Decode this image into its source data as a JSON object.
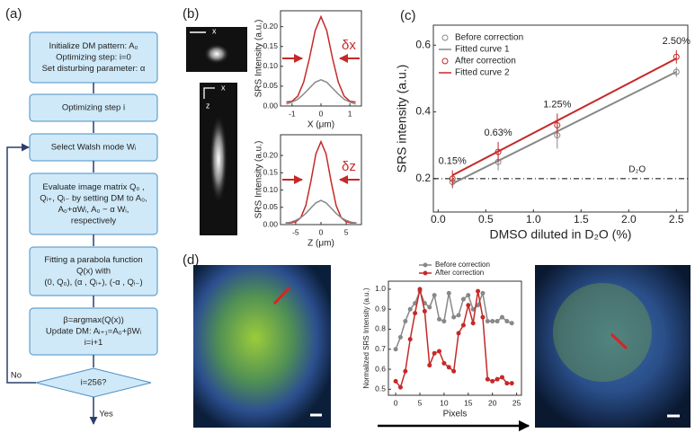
{
  "panels": [
    "(a)",
    "(b)",
    "(c)",
    "(d)"
  ],
  "flowchart": {
    "steps": [
      [
        "Initialize DM pattern: A₀",
        "Optimizing step: i=0",
        "Set disturbing parameter: α"
      ],
      [
        "Optimizing step i"
      ],
      [
        "Select Walsh mode Wᵢ"
      ],
      [
        "Evaluate image matrix Q₀ ,",
        "Qᵢ₊, Qᵢ₋ by setting DM to A₀,",
        "A₀+αWᵢ, A₀ − α Wᵢ,",
        "respectively"
      ],
      [
        "Fitting a parabola function",
        "Q(x) with",
        "(0, Q₀), (α , Qᵢ₊), (-α , Qᵢ₋)"
      ],
      [
        "β=argmax(Q(x))",
        "Update DM: Aᵢ₊₁=A₀+βWᵢ",
        "i=i+1"
      ]
    ],
    "decision": "i=256?",
    "no": "No",
    "yes": "Yes"
  },
  "images": [
    {
      "axes": [
        "x"
      ]
    },
    {
      "axes": [
        "x",
        "z"
      ]
    }
  ],
  "chart_data": [
    {
      "type": "line",
      "xlabel": "X (μm)",
      "ylabel": "SRS Intensity (a.u.)",
      "annotation": "δx",
      "xlim": [
        -1.4,
        1.4
      ],
      "xticks": [
        -1,
        0,
        1
      ],
      "ylim": [
        0,
        0.24
      ],
      "yticks": [
        {
          "value": 0,
          "label": "0.00"
        },
        0.05,
        {
          "value": 0.1,
          "label": "0.10"
        },
        0.15,
        {
          "value": 0.2,
          "label": "0.20"
        }
      ],
      "series": [
        {
          "color": "#c62828",
          "style": "line",
          "x": [
            -1.2,
            -1.0,
            -0.8,
            -0.6,
            -0.4,
            -0.2,
            0,
            0.2,
            0.4,
            0.6,
            0.8,
            1.0,
            1.2
          ],
          "values": [
            0.01,
            0.012,
            0.025,
            0.06,
            0.12,
            0.19,
            0.225,
            0.19,
            0.12,
            0.06,
            0.025,
            0.012,
            0.01
          ]
        },
        {
          "color": "#888888",
          "style": "line",
          "x": [
            -1.2,
            -1.0,
            -0.8,
            -0.6,
            -0.4,
            -0.2,
            0,
            0.2,
            0.4,
            0.6,
            0.8,
            1.0,
            1.2
          ],
          "values": [
            0.005,
            0.01,
            0.017,
            0.03,
            0.045,
            0.06,
            0.066,
            0.06,
            0.045,
            0.03,
            0.017,
            0.01,
            0.005
          ]
        }
      ]
    },
    {
      "type": "line",
      "xlabel": "Z (μm)",
      "ylabel": "SRS Intensity (a.u.)",
      "annotation": "δz",
      "xlim": [
        -8,
        8
      ],
      "xticks": [
        -5,
        0,
        5
      ],
      "ylim": [
        0,
        0.26
      ],
      "yticks": [
        {
          "value": 0,
          "label": "0.00"
        },
        0.05,
        {
          "value": 0.1,
          "label": "0.10"
        },
        0.15,
        {
          "value": 0.2,
          "label": "0.20"
        }
      ],
      "series": [
        {
          "color": "#c62828",
          "style": "line",
          "x": [
            -7,
            -6,
            -5,
            -4,
            -3,
            -2,
            -1,
            0,
            1,
            2,
            3,
            4,
            5,
            6,
            7
          ],
          "values": [
            0.005,
            0.005,
            0.008,
            0.02,
            0.055,
            0.125,
            0.205,
            0.24,
            0.205,
            0.125,
            0.055,
            0.02,
            0.008,
            0.005,
            0.005
          ]
        },
        {
          "color": "#888888",
          "style": "line",
          "x": [
            -7,
            -6,
            -5,
            -4,
            -3,
            -2,
            -1,
            0,
            1,
            2,
            3,
            4,
            5,
            6,
            7
          ],
          "values": [
            0.005,
            0.007,
            0.012,
            0.02,
            0.032,
            0.048,
            0.063,
            0.07,
            0.063,
            0.048,
            0.032,
            0.02,
            0.012,
            0.007,
            0.005
          ]
        }
      ]
    },
    {
      "type": "scatter",
      "xlabel": "DMSO diluted in D₂O (%)",
      "ylabel": "SRS intensity (a.u.)",
      "xlim": [
        -0.05,
        2.62
      ],
      "ylim": [
        0.1,
        0.66
      ],
      "xticks": [
        {
          "value": 0,
          "label": "0.0"
        },
        0.5,
        {
          "value": 1,
          "label": "1.0"
        },
        1.5,
        {
          "value": 2,
          "label": "2.0"
        },
        2.5
      ],
      "yticks": [
        0.2,
        0.4,
        0.6
      ],
      "legend": "upper left",
      "reference_line": {
        "value": 0.2,
        "label": "D₂O"
      },
      "point_labels": [
        "0.15%",
        "0.63%",
        "1.25%",
        "2.50%"
      ],
      "series": [
        {
          "name": "Before correction",
          "color": "#888888",
          "style": "open-markers",
          "x": [
            0.15,
            0.63,
            1.25,
            2.5
          ],
          "values": [
            0.19,
            0.25,
            0.33,
            0.52
          ],
          "errors": [
            0.02,
            0.025,
            0.04,
            0.015
          ]
        },
        {
          "name": "Fitted curve 1",
          "color": "#888888",
          "style": "line",
          "x": [
            0.15,
            2.5
          ],
          "values": [
            0.185,
            0.52
          ]
        },
        {
          "name": "After correction",
          "color": "#c62828",
          "style": "open-markers",
          "x": [
            0.15,
            0.63,
            1.25,
            2.5
          ],
          "values": [
            0.2,
            0.28,
            0.36,
            0.565
          ],
          "errors": [
            0.025,
            0.03,
            0.035,
            0.02
          ]
        },
        {
          "name": "Fitted curve 2",
          "color": "#c62828",
          "style": "line",
          "x": [
            0.15,
            2.5
          ],
          "values": [
            0.21,
            0.56
          ]
        }
      ]
    },
    {
      "type": "line",
      "xlabel": "Pixels",
      "ylabel": "Normalized SRS Intensity (a.u.)",
      "xlim": [
        -1.5,
        26
      ],
      "xticks": [
        0,
        5,
        10,
        15,
        20,
        25
      ],
      "ylim": [
        0.47,
        1.04
      ],
      "yticks": [
        0.5,
        0.6,
        0.7,
        0.8,
        0.9,
        {
          "value": 1,
          "label": "1.0"
        }
      ],
      "legend": "top",
      "series": [
        {
          "name": "Before correction",
          "color": "#888888",
          "style": "line+markers",
          "x": [
            0,
            1,
            2,
            3,
            4,
            5,
            6,
            7,
            8,
            9,
            10,
            11,
            12,
            13,
            14,
            15,
            16,
            17,
            18,
            19,
            20,
            21,
            22,
            23,
            24
          ],
          "values": [
            0.7,
            0.76,
            0.84,
            0.9,
            0.93,
            0.99,
            0.93,
            0.91,
            0.97,
            0.85,
            0.84,
            0.98,
            0.86,
            0.87,
            0.95,
            0.97,
            0.9,
            0.92,
            0.98,
            0.84,
            0.84,
            0.84,
            0.86,
            0.84,
            0.83
          ]
        },
        {
          "name": "After correction",
          "color": "#c62828",
          "style": "line+markers",
          "x": [
            0,
            1,
            2,
            3,
            4,
            5,
            6,
            7,
            8,
            9,
            10,
            11,
            12,
            13,
            14,
            15,
            16,
            17,
            18,
            19,
            20,
            21,
            22,
            23,
            24
          ],
          "values": [
            0.54,
            0.51,
            0.59,
            0.75,
            0.88,
            1.0,
            0.89,
            0.62,
            0.68,
            0.69,
            0.63,
            0.61,
            0.59,
            0.78,
            0.82,
            0.92,
            0.83,
            0.99,
            0.86,
            0.55,
            0.54,
            0.55,
            0.56,
            0.53,
            0.53
          ]
        }
      ]
    }
  ]
}
